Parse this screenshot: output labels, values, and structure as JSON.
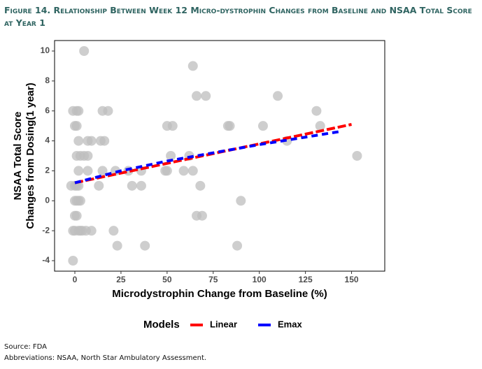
{
  "chart_data": {
    "type": "scatter",
    "title": "Figure 14. Relationship Between Week 12 Micro-dystrophin Changes from Baseline and NSAA Total Score at Year 1",
    "xlabel": "Microdystrophin Change from Baseline (%)",
    "ylabel": [
      "NSAA Total Score",
      "Changes from Dosing(1 year)"
    ],
    "xlim": [
      -11,
      168
    ],
    "ylim": [
      -4.7,
      10.7
    ],
    "xticks": [
      0,
      25,
      50,
      75,
      100,
      125,
      150
    ],
    "yticks": [
      -4,
      -2,
      0,
      2,
      4,
      6,
      8,
      10
    ],
    "grid": false,
    "points": {
      "color": "#bdbdbd",
      "x": [
        -1,
        1,
        2,
        0,
        1,
        2,
        1,
        3,
        5,
        7,
        2,
        7,
        -2,
        0,
        1,
        2,
        0,
        1,
        2,
        3,
        0,
        1,
        -1,
        0,
        2,
        3,
        4,
        6,
        9,
        -1,
        5,
        7,
        9,
        14,
        16,
        15,
        18,
        15,
        22,
        13,
        21,
        23,
        29,
        31,
        36,
        36,
        38,
        49,
        50,
        50,
        53,
        52,
        59,
        62,
        64,
        64,
        66,
        66,
        68,
        69,
        71,
        83,
        84,
        88,
        90,
        102,
        110,
        115,
        131,
        133,
        153
      ],
      "y": [
        6,
        6,
        6,
        5,
        5,
        4,
        3,
        3,
        3,
        3,
        2,
        2,
        1,
        1,
        1,
        1,
        0,
        0,
        0,
        0,
        -1,
        -1,
        -2,
        -2,
        -2,
        -2,
        -2,
        -2,
        -2,
        -4,
        10,
        4,
        4,
        4,
        4,
        6,
        6,
        2,
        2,
        1,
        -2,
        -3,
        2,
        1,
        1,
        2,
        -3,
        2,
        2,
        5,
        5,
        3,
        2,
        3,
        2,
        9,
        -1,
        7,
        1,
        -1,
        7,
        5,
        5,
        -3,
        0,
        5,
        7,
        4,
        6,
        5,
        3
      ]
    },
    "legend_title": "Models",
    "series": [
      {
        "name": "Linear",
        "color": "#ff0000",
        "x": [
          0,
          150
        ],
        "values": [
          1.2,
          5.1
        ]
      },
      {
        "name": "Emax",
        "color": "#0000ff",
        "x": [
          0,
          25,
          50,
          75,
          100,
          125,
          145
        ],
        "values": [
          1.2,
          2.0,
          2.65,
          3.2,
          3.75,
          4.25,
          4.65
        ]
      }
    ],
    "source": "Source: FDA",
    "note": "Abbreviations: NSAA, North Star Ambulatory Assessment."
  }
}
